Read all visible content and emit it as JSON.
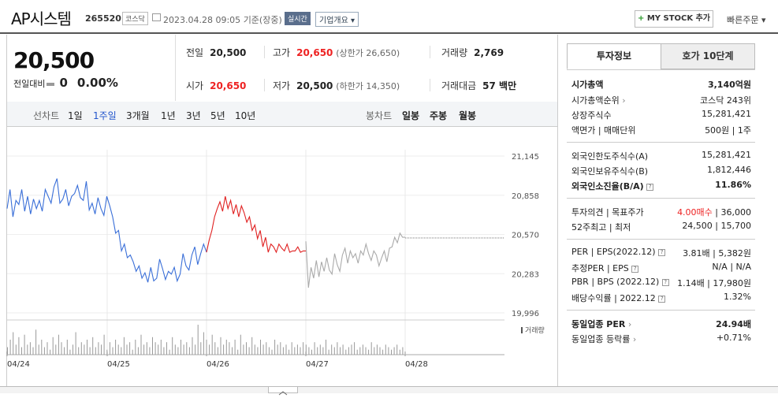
{
  "header": {
    "title": "AP시스템",
    "code": "265520",
    "market": "코스닥",
    "datetime": "2023.04.28 09:05",
    "basis": "기준(장중)",
    "realtime_badge": "실시간",
    "overview_label": "기업개요",
    "mystock_label": "MY STOCK 추가",
    "quick_order_label": "빠른주문"
  },
  "quote": {
    "price": "20,500",
    "change_label": "전일대비",
    "change_value": "0",
    "change_pct": "0.00%",
    "prev_label": "전일",
    "prev_value": "20,500",
    "high_label": "고가",
    "high_value": "20,650",
    "upper_limit": "(상한가 26,650)",
    "volume_label": "거래량",
    "volume_value": "2,769",
    "open_label": "시가",
    "open_value": "20,650",
    "low_label": "저가",
    "low_value": "20,500",
    "lower_limit": "(하한가 14,350)",
    "amount_label": "거래대금",
    "amount_value": "57 백만"
  },
  "chart_tabs": {
    "line_label": "선차트",
    "line_periods": [
      "1일",
      "1주일",
      "3개월",
      "1년",
      "3년",
      "5년",
      "10년"
    ],
    "active": "1주일",
    "candle_label": "봉차트",
    "candle_periods": [
      "일봉",
      "주봉",
      "월봉"
    ]
  },
  "chart_data": {
    "type": "line",
    "y_ticks": [
      "21,145",
      "20,858",
      "20,570",
      "20,283",
      "19,996"
    ],
    "ylim": [
      19996,
      21145
    ],
    "x_labels": [
      "04/24",
      "04/25",
      "04/26",
      "04/27",
      "04/28"
    ],
    "volume_label": "거래량",
    "series": [
      {
        "color": "#3a6fd8",
        "values": [
          20760,
          20900,
          20700,
          20820,
          20790,
          20900,
          20740,
          20850,
          20720,
          20830,
          20760,
          20820,
          20740,
          20900,
          20850,
          20800,
          20920,
          20980,
          20800,
          20830,
          20900,
          20780,
          20850,
          20870,
          20930,
          20840,
          20820,
          20960,
          20750,
          20800,
          20720,
          20840,
          20760,
          20710,
          20850,
          20780,
          20700,
          20580,
          20600,
          20450,
          20500,
          20400,
          20420,
          20370,
          20300,
          20340,
          20250,
          20290,
          20220,
          20330,
          20230,
          20250,
          20390,
          20320,
          20240,
          20300,
          20280,
          20330,
          20230,
          20280,
          20430,
          20340,
          20310,
          20420,
          20480,
          20350,
          20430,
          20500,
          20440
        ]
      },
      {
        "color": "#e02020",
        "values": [
          20440,
          20530,
          20600,
          20700,
          20760,
          20810,
          20740,
          20850,
          20760,
          20820,
          20720,
          20790,
          20700,
          20780,
          20730,
          20660,
          20700,
          20600,
          20640,
          20540,
          20600,
          20480,
          20550,
          20440,
          20500,
          20480,
          20440,
          20500,
          20470,
          20450,
          20500,
          20440,
          20450,
          20450,
          20480,
          20440,
          20450,
          20450
        ]
      },
      {
        "color": "#aaaaaa",
        "values": [
          20520,
          20180,
          20330,
          20250,
          20380,
          20260,
          20370,
          20300,
          20400,
          20310,
          20280,
          20430,
          20350,
          20300,
          20420,
          20470,
          20360,
          20450,
          20400,
          20430,
          20360,
          20450,
          20420,
          20500,
          20430,
          20380,
          20450,
          20420,
          20340,
          20400,
          20450,
          20370,
          20470,
          20480,
          20550,
          20510,
          20580,
          20550,
          20550
        ]
      },
      {
        "color": "#888888",
        "dashed": true,
        "values": [
          20545,
          20545
        ]
      }
    ],
    "volumes": [
      3,
      6,
      9,
      4,
      7,
      3,
      8,
      4,
      5,
      3,
      10,
      4,
      6,
      3,
      5,
      2,
      7,
      4,
      8,
      5,
      3,
      6,
      2,
      4,
      9,
      3,
      5,
      4,
      6,
      3,
      7,
      3,
      5,
      4,
      8,
      2,
      5,
      3,
      6,
      4,
      3,
      7,
      4,
      5,
      2,
      6,
      3,
      8,
      4,
      5,
      3,
      7,
      5,
      4,
      6,
      3,
      5,
      2,
      7,
      4,
      3,
      6,
      4,
      5,
      3,
      7,
      4,
      12,
      5,
      9,
      6,
      4,
      8,
      5,
      3,
      7,
      4,
      6,
      5,
      3,
      6,
      2,
      8,
      4,
      5,
      3,
      7,
      4,
      3,
      6,
      4,
      5,
      3,
      2,
      6,
      4,
      5,
      3,
      4,
      2,
      5,
      3,
      4,
      3,
      5,
      4,
      3,
      2,
      5,
      3,
      4,
      3,
      6,
      2,
      4,
      3,
      5,
      3,
      4,
      2,
      3,
      4,
      5,
      2,
      3,
      4,
      3,
      2,
      5,
      3,
      4,
      3,
      2,
      4,
      3,
      2,
      3,
      4,
      2,
      3
    ]
  },
  "side_tabs": [
    "투자정보",
    "호가 10단계"
  ],
  "invest": {
    "market_cap_label": "시가총액",
    "market_cap_value": "3,140억원",
    "rank_label": "시가총액순위",
    "rank_value": "코스닥 243위",
    "shares_label": "상장주식수",
    "shares_value": "15,281,421",
    "par_label": "액면가 | 매매단위",
    "par_value": "500원 | 1주",
    "foreign_limit_label": "외국인한도주식수(A)",
    "foreign_limit_value": "15,281,421",
    "foreign_hold_label": "외국인보유주식수(B)",
    "foreign_hold_value": "1,812,446",
    "foreign_ratio_label": "외국인소진율(B/A)",
    "foreign_ratio_value": "11.86%",
    "opinion_label": "투자의견 | 목표주가",
    "opinion_value": "4.00매수",
    "target_value": "| 36,000",
    "w52_label": "52주최고 | 최저",
    "w52_value": "24,500 | 15,700",
    "per_label": "PER | EPS(2022.12)",
    "per_value": "3.81배 | 5,382원",
    "est_per_label": "추정PER | EPS",
    "est_per_value": "N/A | N/A",
    "pbr_label": "PBR | BPS (2022.12)",
    "pbr_value": "1.14배 | 17,980원",
    "div_label": "배당수익률 | 2022.12",
    "div_value": "1.32%",
    "sector_per_label": "동일업종 PER",
    "sector_per_value": "24.94배",
    "sector_rate_label": "동일업종 등락률",
    "sector_rate_value": "+0.71%"
  }
}
